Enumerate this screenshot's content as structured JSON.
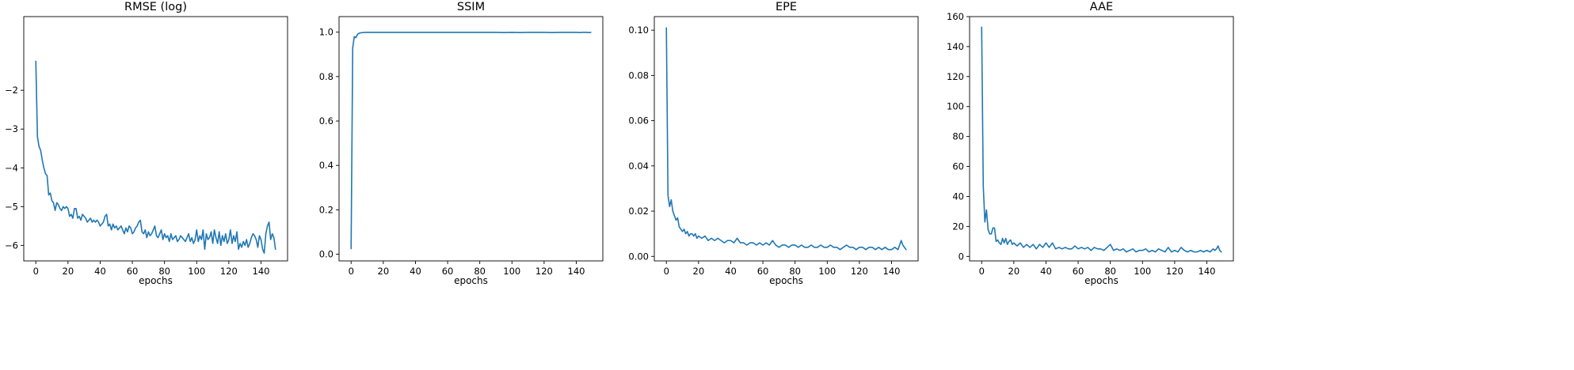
{
  "colors": {
    "series": "#1f77b4"
  },
  "chart_data": [
    {
      "type": "line",
      "title": "RMSE (log)",
      "xlabel": "epochs",
      "ylabel": "",
      "xlim": [
        -7.5,
        156.5
      ],
      "ylim": [
        -6.4,
        -0.1
      ],
      "xticks": [
        0,
        20,
        40,
        60,
        80,
        100,
        120,
        140
      ],
      "yticks": [
        -6,
        -5,
        -4,
        -3,
        -2
      ],
      "grid": false,
      "series": [
        {
          "x": [
            0,
            1,
            2,
            3,
            4,
            5,
            6,
            7,
            8,
            9,
            10,
            11,
            12,
            13,
            14,
            15,
            16,
            17,
            18,
            19,
            20,
            21,
            22,
            23,
            24,
            25,
            26,
            27,
            28,
            29,
            30,
            31,
            32,
            33,
            34,
            35,
            36,
            37,
            38,
            39,
            40,
            41,
            42,
            43,
            44,
            45,
            46,
            47,
            48,
            49,
            50,
            51,
            52,
            53,
            54,
            55,
            56,
            57,
            58,
            59,
            60,
            61,
            62,
            63,
            64,
            65,
            66,
            67,
            68,
            69,
            70,
            71,
            72,
            73,
            74,
            75,
            76,
            77,
            78,
            79,
            80,
            81,
            82,
            83,
            84,
            85,
            86,
            87,
            88,
            89,
            90,
            91,
            92,
            93,
            94,
            95,
            96,
            97,
            98,
            99,
            100,
            101,
            102,
            103,
            104,
            105,
            106,
            107,
            108,
            109,
            110,
            111,
            112,
            113,
            114,
            115,
            116,
            117,
            118,
            119,
            120,
            121,
            122,
            123,
            124,
            125,
            126,
            127,
            128,
            129,
            130,
            131,
            132,
            133,
            134,
            135,
            136,
            137,
            138,
            139,
            140,
            141,
            142,
            143,
            144,
            145,
            146,
            147,
            148,
            149
          ],
          "values": [
            -1.25,
            -3.2,
            -3.45,
            -3.55,
            -3.8,
            -4.0,
            -4.15,
            -4.2,
            -4.7,
            -4.65,
            -4.85,
            -4.9,
            -5.1,
            -4.9,
            -4.95,
            -5.05,
            -5.1,
            -5.0,
            -5.05,
            -5.0,
            -5.05,
            -5.25,
            -5.2,
            -5.3,
            -5.05,
            -5.05,
            -5.3,
            -5.25,
            -5.35,
            -5.2,
            -5.25,
            -5.3,
            -5.4,
            -5.35,
            -5.3,
            -5.4,
            -5.35,
            -5.4,
            -5.35,
            -5.4,
            -5.5,
            -5.45,
            -5.4,
            -5.25,
            -5.2,
            -5.5,
            -5.45,
            -5.6,
            -5.45,
            -5.55,
            -5.5,
            -5.6,
            -5.55,
            -5.5,
            -5.6,
            -5.7,
            -5.55,
            -5.65,
            -5.5,
            -5.55,
            -5.7,
            -5.65,
            -5.55,
            -5.5,
            -5.4,
            -5.35,
            -5.65,
            -5.7,
            -5.6,
            -5.8,
            -5.65,
            -5.75,
            -5.7,
            -5.6,
            -5.5,
            -5.75,
            -5.8,
            -5.7,
            -5.6,
            -5.85,
            -5.7,
            -5.8,
            -5.75,
            -5.9,
            -5.7,
            -5.85,
            -5.8,
            -5.75,
            -5.9,
            -5.85,
            -5.75,
            -5.8,
            -5.85,
            -5.9,
            -5.8,
            -5.7,
            -5.9,
            -5.8,
            -5.95,
            -5.85,
            -5.6,
            -5.9,
            -5.75,
            -5.85,
            -5.6,
            -6.1,
            -5.7,
            -5.85,
            -5.8,
            -5.65,
            -5.95,
            -5.6,
            -5.8,
            -5.95,
            -5.65,
            -6.0,
            -5.75,
            -5.9,
            -5.7,
            -5.95,
            -5.85,
            -5.6,
            -5.95,
            -5.75,
            -5.9,
            -5.65,
            -6.1,
            -5.95,
            -6.05,
            -5.9,
            -6.0,
            -5.85,
            -6.05,
            -5.95,
            -5.8,
            -5.7,
            -5.75,
            -5.85,
            -6.05,
            -5.75,
            -5.85,
            -6.1,
            -6.2,
            -5.7,
            -5.5,
            -5.4,
            -5.85,
            -5.7,
            -5.8,
            -6.1
          ]
        }
      ]
    },
    {
      "type": "line",
      "title": "SSIM",
      "xlabel": "epochs",
      "ylabel": "",
      "xlim": [
        -7.5,
        156.5
      ],
      "ylim": [
        -0.03,
        1.07
      ],
      "xticks": [
        0,
        20,
        40,
        60,
        80,
        100,
        120,
        140
      ],
      "yticks": [
        0.0,
        0.2,
        0.4,
        0.6,
        0.8,
        1.0
      ],
      "grid": false,
      "series": [
        {
          "x": [
            0,
            1,
            2,
            3,
            4,
            5,
            6,
            7,
            8,
            9,
            10,
            12,
            15,
            20,
            25,
            30,
            40,
            50,
            60,
            70,
            80,
            90,
            95,
            100,
            105,
            110,
            115,
            120,
            125,
            130,
            135,
            140,
            142,
            144,
            146,
            148,
            149
          ],
          "values": [
            0.025,
            0.93,
            0.98,
            0.975,
            0.99,
            0.995,
            0.997,
            0.998,
            0.998,
            0.999,
            0.999,
            0.999,
            0.999,
            0.999,
            0.999,
            0.999,
            0.999,
            0.999,
            0.999,
            0.999,
            0.999,
            0.999,
            0.998,
            0.999,
            0.998,
            0.999,
            0.999,
            0.999,
            0.998,
            0.999,
            0.999,
            0.999,
            0.998,
            0.999,
            0.999,
            0.998,
            0.999
          ]
        }
      ]
    },
    {
      "type": "line",
      "title": "EPE",
      "xlabel": "epochs",
      "ylabel": "",
      "xlim": [
        -7.5,
        156.5
      ],
      "ylim": [
        -0.002,
        0.106
      ],
      "xticks": [
        0,
        20,
        40,
        60,
        80,
        100,
        120,
        140
      ],
      "yticks": [
        0.0,
        0.02,
        0.04,
        0.06,
        0.08,
        0.1
      ],
      "grid": false,
      "series": [
        {
          "x": [
            0,
            1,
            2,
            3,
            4,
            5,
            6,
            7,
            8,
            9,
            10,
            11,
            12,
            13,
            14,
            15,
            16,
            17,
            18,
            19,
            20,
            22,
            24,
            26,
            28,
            30,
            32,
            34,
            36,
            38,
            40,
            42,
            44,
            46,
            48,
            50,
            52,
            54,
            56,
            58,
            60,
            62,
            64,
            66,
            68,
            70,
            72,
            74,
            76,
            78,
            80,
            82,
            84,
            86,
            88,
            90,
            92,
            94,
            96,
            98,
            100,
            102,
            104,
            106,
            108,
            110,
            112,
            114,
            116,
            118,
            120,
            122,
            124,
            126,
            128,
            130,
            132,
            134,
            136,
            138,
            140,
            142,
            144,
            145,
            146,
            147,
            148,
            149
          ],
          "values": [
            0.101,
            0.027,
            0.022,
            0.025,
            0.02,
            0.018,
            0.016,
            0.017,
            0.013,
            0.012,
            0.011,
            0.012,
            0.01,
            0.011,
            0.009,
            0.01,
            0.01,
            0.009,
            0.01,
            0.008,
            0.009,
            0.008,
            0.009,
            0.007,
            0.008,
            0.007,
            0.008,
            0.007,
            0.006,
            0.007,
            0.007,
            0.006,
            0.008,
            0.006,
            0.006,
            0.005,
            0.006,
            0.006,
            0.005,
            0.006,
            0.005,
            0.006,
            0.005,
            0.007,
            0.005,
            0.004,
            0.005,
            0.005,
            0.004,
            0.005,
            0.005,
            0.004,
            0.005,
            0.004,
            0.004,
            0.005,
            0.004,
            0.004,
            0.005,
            0.004,
            0.004,
            0.005,
            0.004,
            0.004,
            0.003,
            0.004,
            0.005,
            0.004,
            0.004,
            0.003,
            0.004,
            0.004,
            0.003,
            0.004,
            0.004,
            0.003,
            0.004,
            0.003,
            0.004,
            0.003,
            0.003,
            0.004,
            0.003,
            0.005,
            0.007,
            0.005,
            0.004,
            0.003
          ]
        }
      ]
    },
    {
      "type": "line",
      "title": "AAE",
      "xlabel": "epochs",
      "ylabel": "",
      "xlim": [
        -7.5,
        156.5
      ],
      "ylim": [
        -3,
        160
      ],
      "xticks": [
        0,
        20,
        40,
        60,
        80,
        100,
        120,
        140
      ],
      "yticks": [
        0,
        20,
        40,
        60,
        80,
        100,
        120,
        140,
        160
      ],
      "grid": false,
      "series": [
        {
          "x": [
            0,
            1,
            2,
            3,
            4,
            5,
            6,
            7,
            8,
            9,
            10,
            11,
            12,
            13,
            14,
            15,
            16,
            17,
            18,
            19,
            20,
            22,
            24,
            26,
            28,
            30,
            32,
            34,
            36,
            38,
            40,
            42,
            44,
            46,
            48,
            50,
            52,
            54,
            56,
            58,
            60,
            62,
            64,
            66,
            68,
            70,
            72,
            74,
            76,
            78,
            80,
            82,
            84,
            86,
            88,
            90,
            92,
            94,
            96,
            98,
            100,
            102,
            104,
            106,
            108,
            110,
            112,
            114,
            116,
            118,
            120,
            122,
            124,
            126,
            128,
            130,
            132,
            134,
            136,
            138,
            140,
            142,
            144,
            145,
            146,
            147,
            148,
            149
          ],
          "values": [
            153,
            47,
            23,
            31,
            18,
            15,
            15,
            19,
            19,
            10,
            11,
            9,
            8,
            12,
            9,
            12,
            8,
            10,
            11,
            8,
            9,
            7,
            9,
            6,
            8,
            6,
            8,
            5,
            8,
            6,
            9,
            6,
            9,
            5,
            6,
            5,
            6,
            5,
            5,
            7,
            5,
            6,
            5,
            6,
            4,
            6,
            5,
            5,
            4,
            6,
            8,
            4,
            5,
            4,
            5,
            3,
            4,
            5,
            3,
            4,
            4,
            5,
            3,
            4,
            3,
            5,
            4,
            3,
            6,
            3,
            4,
            3,
            6,
            4,
            3,
            4,
            3,
            3,
            4,
            3,
            4,
            3,
            5,
            4,
            5,
            7,
            4,
            3
          ]
        }
      ]
    }
  ]
}
